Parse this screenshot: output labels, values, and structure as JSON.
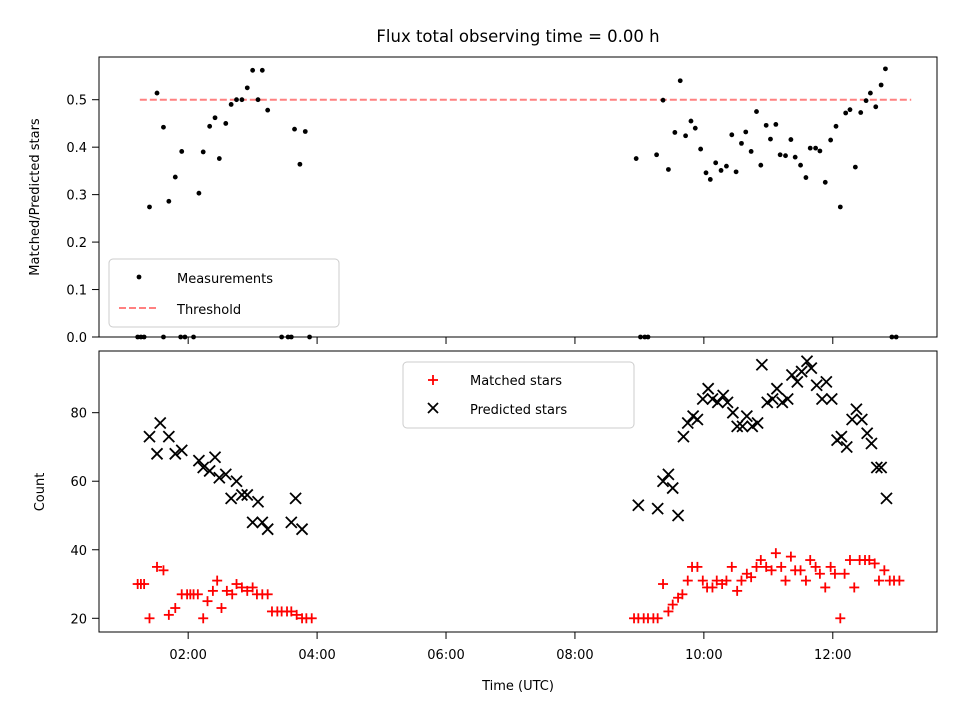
{
  "title": "Flux total observing time = 0.00 h",
  "colors": {
    "measurement": "#000000",
    "threshold": "#ff8080",
    "matched": "#ff0000",
    "predicted": "#000000"
  },
  "chart_data": [
    {
      "type": "scatter",
      "ylabel": "Matched/Predicted stars",
      "xlim": [
        "00:37",
        "13:37"
      ],
      "ylim": [
        0,
        0.59
      ],
      "yticks": [
        "0.0",
        "0.1",
        "0.2",
        "0.3",
        "0.4",
        "0.5"
      ],
      "grid": false,
      "legend": {
        "placement": "lower-left",
        "entries": [
          "Measurements",
          "Threshold"
        ]
      },
      "threshold": {
        "value": 0.5,
        "x_start": "01:15",
        "x_end": "13:13"
      },
      "series": [
        {
          "name": "Measurements",
          "marker": "dot",
          "points": [
            [
              "01:13",
              0
            ],
            [
              "01:16",
              0
            ],
            [
              "01:19",
              0
            ],
            [
              "01:37",
              0
            ],
            [
              "01:53",
              0
            ],
            [
              "01:57",
              0
            ],
            [
              "02:05",
              0
            ],
            [
              "01:24",
              0.274
            ],
            [
              "01:31",
              0.514
            ],
            [
              "01:37",
              0.442
            ],
            [
              "01:42",
              0.286
            ],
            [
              "01:48",
              0.337
            ],
            [
              "01:54",
              0.391
            ],
            [
              "02:10",
              0.303
            ],
            [
              "02:14",
              0.39
            ],
            [
              "02:20",
              0.444
            ],
            [
              "02:25",
              0.462
            ],
            [
              "02:29",
              0.376
            ],
            [
              "02:35",
              0.45
            ],
            [
              "02:40",
              0.49
            ],
            [
              "02:45",
              0.5
            ],
            [
              "02:50",
              0.5
            ],
            [
              "02:55",
              0.525
            ],
            [
              "03:00",
              0.562
            ],
            [
              "03:05",
              0.5
            ],
            [
              "03:09",
              0.562
            ],
            [
              "03:14",
              0.478
            ],
            [
              "03:27",
              0
            ],
            [
              "03:33",
              0
            ],
            [
              "03:36",
              0
            ],
            [
              "03:39",
              0.438
            ],
            [
              "03:44",
              0.364
            ],
            [
              "03:49",
              0.433
            ],
            [
              "03:53",
              0
            ],
            [
              "08:57",
              0.376
            ],
            [
              "09:01",
              0
            ],
            [
              "09:05",
              0
            ],
            [
              "09:08",
              0
            ],
            [
              "09:16",
              0.384
            ],
            [
              "09:22",
              0.499
            ],
            [
              "09:27",
              0.353
            ],
            [
              "09:33",
              0.431
            ],
            [
              "09:38",
              0.54
            ],
            [
              "09:43",
              0.424
            ],
            [
              "09:48",
              0.455
            ],
            [
              "09:52",
              0.44
            ],
            [
              "09:57",
              0.396
            ],
            [
              "10:02",
              0.346
            ],
            [
              "10:06",
              0.332
            ],
            [
              "10:11",
              0.367
            ],
            [
              "10:16",
              0.351
            ],
            [
              "10:21",
              0.36
            ],
            [
              "10:26",
              0.426
            ],
            [
              "10:30",
              0.348
            ],
            [
              "10:35",
              0.408
            ],
            [
              "10:39",
              0.432
            ],
            [
              "10:44",
              0.391
            ],
            [
              "10:49",
              0.475
            ],
            [
              "10:53",
              0.362
            ],
            [
              "10:58",
              0.446
            ],
            [
              "11:02",
              0.417
            ],
            [
              "11:07",
              0.448
            ],
            [
              "11:11",
              0.384
            ],
            [
              "11:16",
              0.382
            ],
            [
              "11:21",
              0.416
            ],
            [
              "11:25",
              0.379
            ],
            [
              "11:30",
              0.362
            ],
            [
              "11:35",
              0.336
            ],
            [
              "11:39",
              0.398
            ],
            [
              "11:44",
              0.398
            ],
            [
              "11:48",
              0.392
            ],
            [
              "11:53",
              0.326
            ],
            [
              "11:58",
              0.415
            ],
            [
              "12:03",
              0.444
            ],
            [
              "12:07",
              0.274
            ],
            [
              "12:12",
              0.472
            ],
            [
              "12:16",
              0.479
            ],
            [
              "12:21",
              0.358
            ],
            [
              "12:26",
              0.473
            ],
            [
              "12:31",
              0.498
            ],
            [
              "12:35",
              0.514
            ],
            [
              "12:40",
              0.485
            ],
            [
              "12:45",
              0.531
            ],
            [
              "12:49",
              0.565
            ],
            [
              "12:55",
              0
            ],
            [
              "12:59",
              0
            ]
          ]
        }
      ]
    },
    {
      "type": "scatter",
      "xlabel": "Time (UTC)",
      "ylabel": "Count",
      "xlim": [
        "00:37",
        "13:37"
      ],
      "xticks": [
        "02:00",
        "04:00",
        "06:00",
        "08:00",
        "10:00",
        "12:00"
      ],
      "ylim": [
        16,
        98
      ],
      "yticks": [
        "20",
        "40",
        "60",
        "80"
      ],
      "grid": false,
      "legend": {
        "placement": "top-center",
        "entries": [
          "Matched stars",
          "Predicted stars"
        ]
      },
      "series": [
        {
          "name": "Matched stars",
          "marker": "plus",
          "points": [
            [
              "01:13",
              30
            ],
            [
              "01:16",
              30
            ],
            [
              "01:19",
              30
            ],
            [
              "01:24",
              20
            ],
            [
              "01:31",
              35
            ],
            [
              "01:37",
              34
            ],
            [
              "01:42",
              21
            ],
            [
              "01:48",
              23
            ],
            [
              "01:54",
              27
            ],
            [
              "01:59",
              27
            ],
            [
              "02:02",
              27
            ],
            [
              "02:05",
              27
            ],
            [
              "02:09",
              27
            ],
            [
              "02:14",
              20
            ],
            [
              "02:18",
              25
            ],
            [
              "02:23",
              28
            ],
            [
              "02:27",
              31
            ],
            [
              "02:31",
              23
            ],
            [
              "02:36",
              28
            ],
            [
              "02:41",
              27
            ],
            [
              "02:45",
              30
            ],
            [
              "02:50",
              29
            ],
            [
              "02:55",
              28
            ],
            [
              "03:00",
              29
            ],
            [
              "03:04",
              27
            ],
            [
              "03:09",
              27
            ],
            [
              "03:14",
              27
            ],
            [
              "03:18",
              22
            ],
            [
              "03:23",
              22
            ],
            [
              "03:27",
              22
            ],
            [
              "03:32",
              22
            ],
            [
              "03:36",
              22
            ],
            [
              "03:41",
              21
            ],
            [
              "03:46",
              20
            ],
            [
              "03:50",
              20
            ],
            [
              "03:55",
              20
            ],
            [
              "08:55",
              20
            ],
            [
              "08:59",
              20
            ],
            [
              "09:04",
              20
            ],
            [
              "09:08",
              20
            ],
            [
              "09:13",
              20
            ],
            [
              "09:17",
              20
            ],
            [
              "09:22",
              30
            ],
            [
              "09:27",
              22
            ],
            [
              "09:31",
              24
            ],
            [
              "09:36",
              26
            ],
            [
              "09:40",
              27
            ],
            [
              "09:45",
              31
            ],
            [
              "09:49",
              35
            ],
            [
              "09:54",
              35
            ],
            [
              "09:59",
              31
            ],
            [
              "10:03",
              29
            ],
            [
              "10:08",
              29
            ],
            [
              "10:12",
              31
            ],
            [
              "10:17",
              30
            ],
            [
              "10:21",
              31
            ],
            [
              "10:26",
              35
            ],
            [
              "10:31",
              28
            ],
            [
              "10:35",
              31
            ],
            [
              "10:40",
              33
            ],
            [
              "10:44",
              32
            ],
            [
              "10:49",
              35
            ],
            [
              "10:53",
              37
            ],
            [
              "10:58",
              35
            ],
            [
              "11:03",
              34
            ],
            [
              "11:07",
              39
            ],
            [
              "11:12",
              35
            ],
            [
              "11:16",
              31
            ],
            [
              "11:21",
              38
            ],
            [
              "11:25",
              34
            ],
            [
              "11:30",
              34
            ],
            [
              "11:35",
              31
            ],
            [
              "11:39",
              37
            ],
            [
              "11:44",
              35
            ],
            [
              "11:48",
              33
            ],
            [
              "11:53",
              29
            ],
            [
              "11:58",
              35
            ],
            [
              "12:02",
              33
            ],
            [
              "12:07",
              20
            ],
            [
              "12:11",
              33
            ],
            [
              "12:16",
              37
            ],
            [
              "12:20",
              29
            ],
            [
              "12:25",
              37
            ],
            [
              "12:30",
              37
            ],
            [
              "12:34",
              37
            ],
            [
              "12:39",
              36
            ],
            [
              "12:43",
              31
            ],
            [
              "12:48",
              34
            ],
            [
              "12:53",
              31
            ],
            [
              "12:57",
              31
            ],
            [
              "13:02",
              31
            ]
          ]
        },
        {
          "name": "Predicted stars",
          "marker": "x",
          "points": [
            [
              "01:24",
              73
            ],
            [
              "01:31",
              68
            ],
            [
              "01:34",
              77
            ],
            [
              "01:42",
              73
            ],
            [
              "01:48",
              68
            ],
            [
              "01:54",
              69
            ],
            [
              "02:10",
              66
            ],
            [
              "02:14",
              64
            ],
            [
              "02:20",
              63
            ],
            [
              "02:25",
              67
            ],
            [
              "02:29",
              61
            ],
            [
              "02:35",
              62
            ],
            [
              "02:40",
              55
            ],
            [
              "02:45",
              60
            ],
            [
              "02:50",
              56
            ],
            [
              "02:55",
              56
            ],
            [
              "03:00",
              48
            ],
            [
              "03:05",
              54
            ],
            [
              "03:09",
              48
            ],
            [
              "03:14",
              46
            ],
            [
              "03:36",
              48
            ],
            [
              "03:40",
              55
            ],
            [
              "03:46",
              46
            ],
            [
              "08:59",
              53
            ],
            [
              "09:17",
              52
            ],
            [
              "09:22",
              60
            ],
            [
              "09:27",
              62
            ],
            [
              "09:31",
              58
            ],
            [
              "09:36",
              50
            ],
            [
              "09:41",
              73
            ],
            [
              "09:45",
              77
            ],
            [
              "09:50",
              79
            ],
            [
              "09:54",
              78
            ],
            [
              "09:59",
              84
            ],
            [
              "10:04",
              87
            ],
            [
              "10:08",
              84
            ],
            [
              "10:13",
              83
            ],
            [
              "10:18",
              85
            ],
            [
              "10:22",
              83
            ],
            [
              "10:27",
              80
            ],
            [
              "10:31",
              76
            ],
            [
              "10:36",
              76
            ],
            [
              "10:40",
              79
            ],
            [
              "10:45",
              76
            ],
            [
              "10:50",
              77
            ],
            [
              "10:54",
              94
            ],
            [
              "10:59",
              83
            ],
            [
              "11:04",
              84
            ],
            [
              "11:08",
              87
            ],
            [
              "11:13",
              83
            ],
            [
              "11:18",
              84
            ],
            [
              "11:22",
              91
            ],
            [
              "11:27",
              89
            ],
            [
              "11:31",
              92
            ],
            [
              "11:36",
              95
            ],
            [
              "11:40",
              93
            ],
            [
              "11:45",
              88
            ],
            [
              "11:50",
              84
            ],
            [
              "11:54",
              89
            ],
            [
              "11:59",
              84
            ],
            [
              "12:04",
              72
            ],
            [
              "12:08",
              73
            ],
            [
              "12:13",
              70
            ],
            [
              "12:18",
              78
            ],
            [
              "12:22",
              81
            ],
            [
              "12:27",
              78
            ],
            [
              "12:32",
              74
            ],
            [
              "12:36",
              71
            ],
            [
              "12:41",
              64
            ],
            [
              "12:45",
              64
            ],
            [
              "12:50",
              55
            ]
          ]
        }
      ]
    }
  ]
}
